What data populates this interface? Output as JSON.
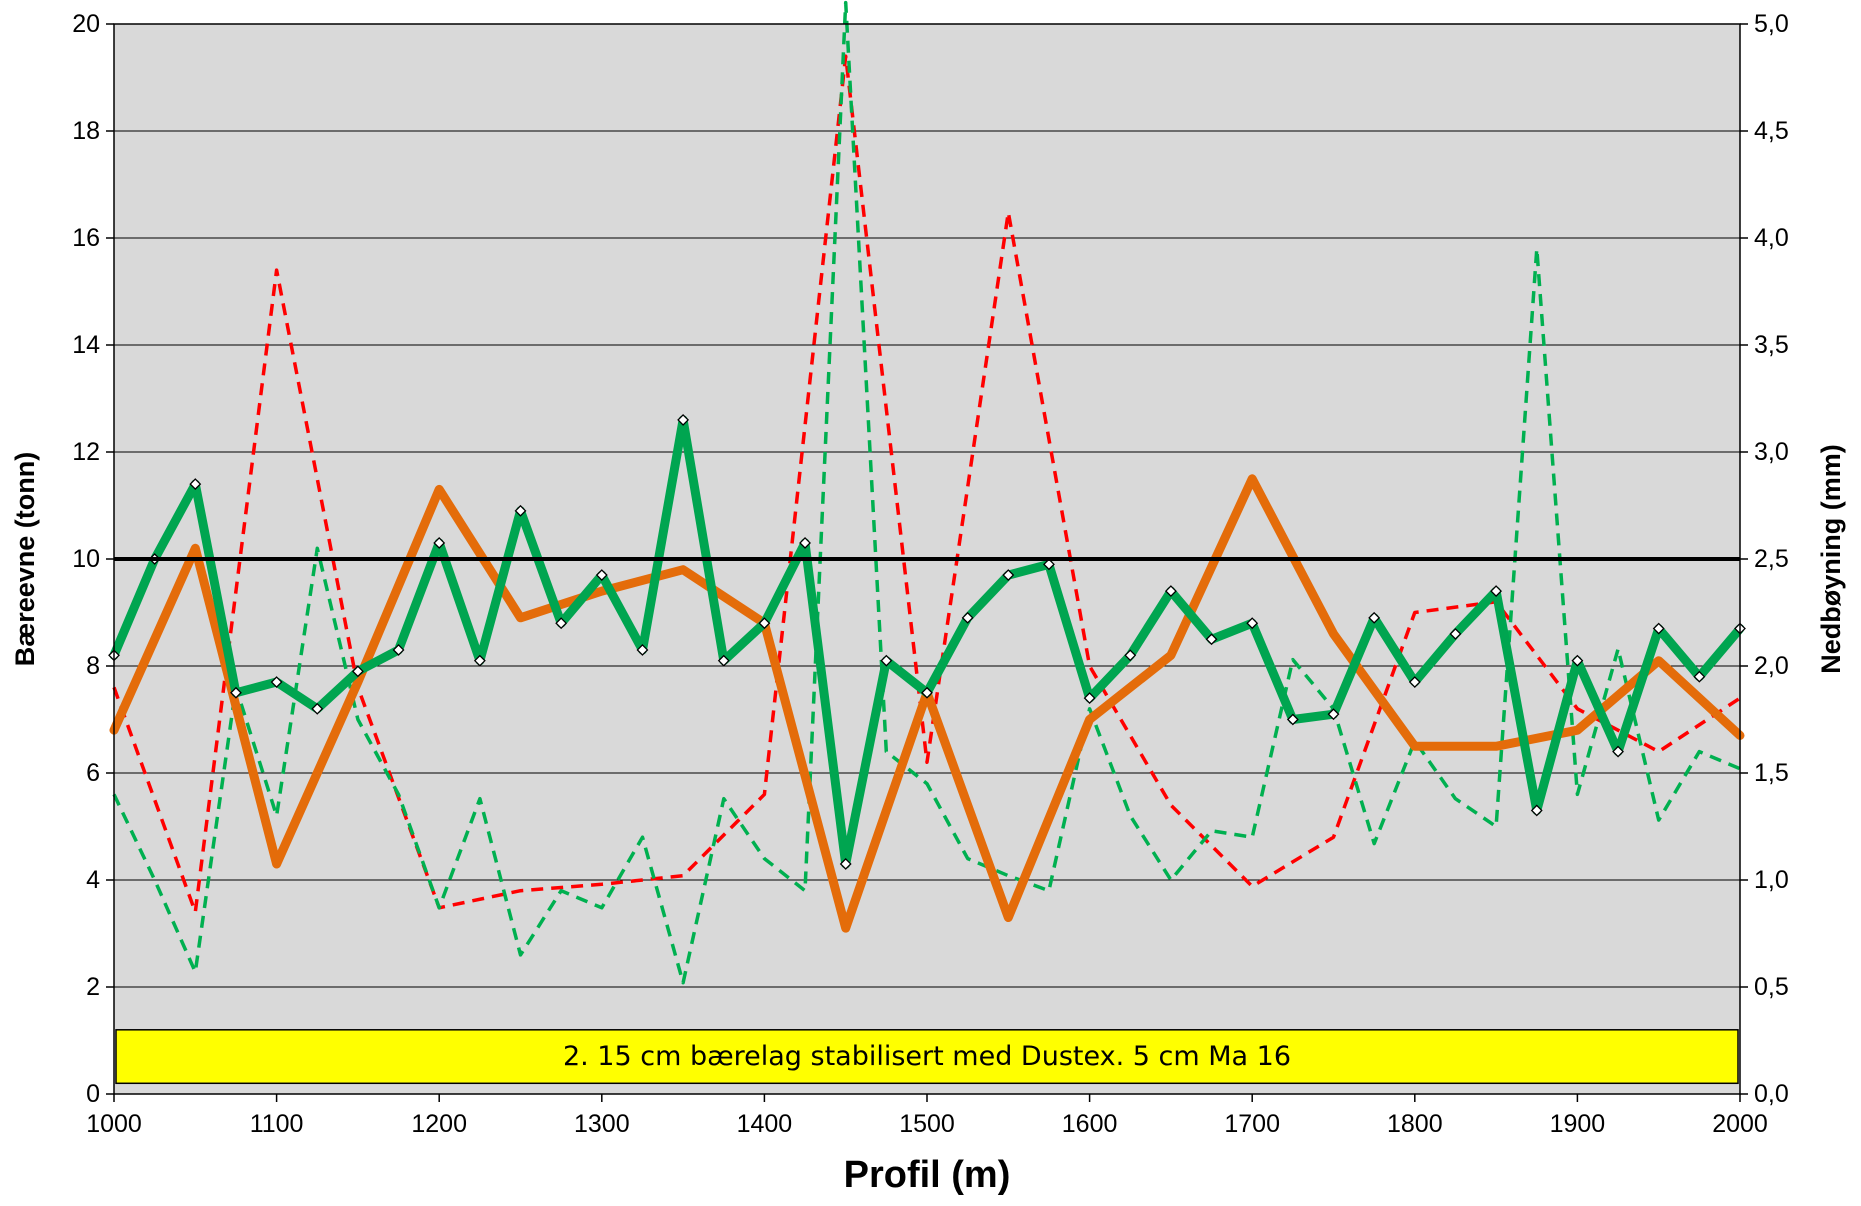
{
  "chart_data": {
    "type": "line",
    "xlabel": "Profil (m)",
    "ylabel": "Bæreevne (tonn)",
    "y2label": "Nedbøyning (mm)",
    "xlim": [
      1000,
      2000
    ],
    "ylim": [
      0,
      20
    ],
    "y2lim": [
      0.0,
      5.0
    ],
    "x_ticks": [
      "1000",
      "1100",
      "1200",
      "1300",
      "1400",
      "1500",
      "1600",
      "1700",
      "1800",
      "1900",
      "2000"
    ],
    "y_ticks": [
      "0",
      "2",
      "4",
      "6",
      "8",
      "10",
      "12",
      "14",
      "16",
      "18",
      "20"
    ],
    "y2_ticks": [
      "0,0",
      "0,5",
      "1,0",
      "1,5",
      "2,0",
      "2,5",
      "3,0",
      "3,5",
      "4,0",
      "4,5",
      "5,0"
    ],
    "grid": true,
    "plot_background": "#d9d9d9",
    "reference_line": {
      "axis": "y",
      "value": 10,
      "color": "#000000"
    },
    "annotation": {
      "text": "2. 15 cm bærelag stabilisert med Dustex. 5 cm Ma 16",
      "fill": "#ffff00",
      "y_range": [
        0.2,
        1.2
      ]
    },
    "series": [
      {
        "axis": "left",
        "style": "solid-thick",
        "color": "#e46c0a",
        "markers": false,
        "x": [
          1000,
          1050,
          1100,
          1150,
          1200,
          1250,
          1300,
          1350,
          1400,
          1450,
          1500,
          1550,
          1600,
          1650,
          1700,
          1750,
          1800,
          1850,
          1900,
          1950,
          2000
        ],
        "values": [
          6.8,
          10.2,
          4.3,
          7.7,
          11.3,
          8.9,
          9.4,
          9.8,
          8.8,
          3.1,
          7.5,
          3.3,
          7.0,
          8.2,
          11.5,
          8.6,
          6.5,
          6.5,
          6.8,
          8.1,
          6.7
        ]
      },
      {
        "axis": "left",
        "style": "solid-thick",
        "color": "#00a550",
        "markers": true,
        "x": [
          1000,
          1025,
          1050,
          1075,
          1100,
          1125,
          1150,
          1175,
          1200,
          1225,
          1250,
          1275,
          1300,
          1325,
          1350,
          1375,
          1400,
          1425,
          1450,
          1475,
          1500,
          1525,
          1550,
          1575,
          1600,
          1625,
          1650,
          1675,
          1700,
          1725,
          1750,
          1775,
          1800,
          1825,
          1850,
          1875,
          1900,
          1925,
          1950,
          1975,
          2000
        ],
        "values": [
          8.2,
          10.0,
          11.4,
          7.5,
          7.7,
          7.2,
          7.9,
          8.3,
          10.3,
          8.1,
          10.9,
          8.8,
          9.7,
          8.3,
          12.6,
          8.1,
          8.8,
          10.3,
          4.3,
          8.1,
          7.5,
          8.9,
          9.7,
          9.9,
          7.4,
          8.2,
          9.4,
          8.5,
          8.8,
          7.0,
          7.1,
          8.9,
          7.7,
          8.6,
          9.4,
          5.3,
          8.1,
          6.4,
          8.7,
          7.8,
          8.7
        ]
      },
      {
        "axis": "right",
        "style": "dashed",
        "color": "#ff0000",
        "markers": false,
        "x": [
          1000,
          1050,
          1100,
          1150,
          1200,
          1250,
          1300,
          1350,
          1400,
          1450,
          1500,
          1550,
          1600,
          1650,
          1700,
          1750,
          1800,
          1850,
          1900,
          1950,
          2000
        ],
        "values": [
          1.9,
          0.85,
          3.85,
          1.9,
          0.87,
          0.95,
          0.98,
          1.02,
          1.4,
          4.85,
          1.55,
          4.12,
          2.0,
          1.35,
          0.97,
          1.2,
          2.25,
          2.3,
          1.8,
          1.6,
          1.85
        ]
      },
      {
        "axis": "right",
        "style": "dashed",
        "color": "#00b050",
        "markers": false,
        "x": [
          1000,
          1025,
          1050,
          1075,
          1100,
          1125,
          1150,
          1175,
          1200,
          1225,
          1250,
          1275,
          1300,
          1325,
          1350,
          1375,
          1400,
          1425,
          1450,
          1475,
          1500,
          1525,
          1550,
          1575,
          1600,
          1625,
          1650,
          1675,
          1700,
          1725,
          1750,
          1775,
          1800,
          1825,
          1850,
          1875,
          1900,
          1925,
          1950,
          1975,
          2000
        ],
        "values": [
          1.4,
          1.0,
          0.57,
          1.9,
          1.3,
          2.55,
          1.75,
          1.4,
          0.87,
          1.38,
          0.65,
          0.95,
          0.87,
          1.2,
          0.52,
          1.38,
          1.1,
          0.95,
          5.1,
          1.6,
          1.45,
          1.1,
          1.02,
          0.95,
          1.8,
          1.3,
          1.0,
          1.23,
          1.2,
          2.03,
          1.8,
          1.17,
          1.65,
          1.38,
          1.25,
          3.95,
          1.4,
          2.08,
          1.28,
          1.6,
          1.52
        ]
      }
    ]
  }
}
